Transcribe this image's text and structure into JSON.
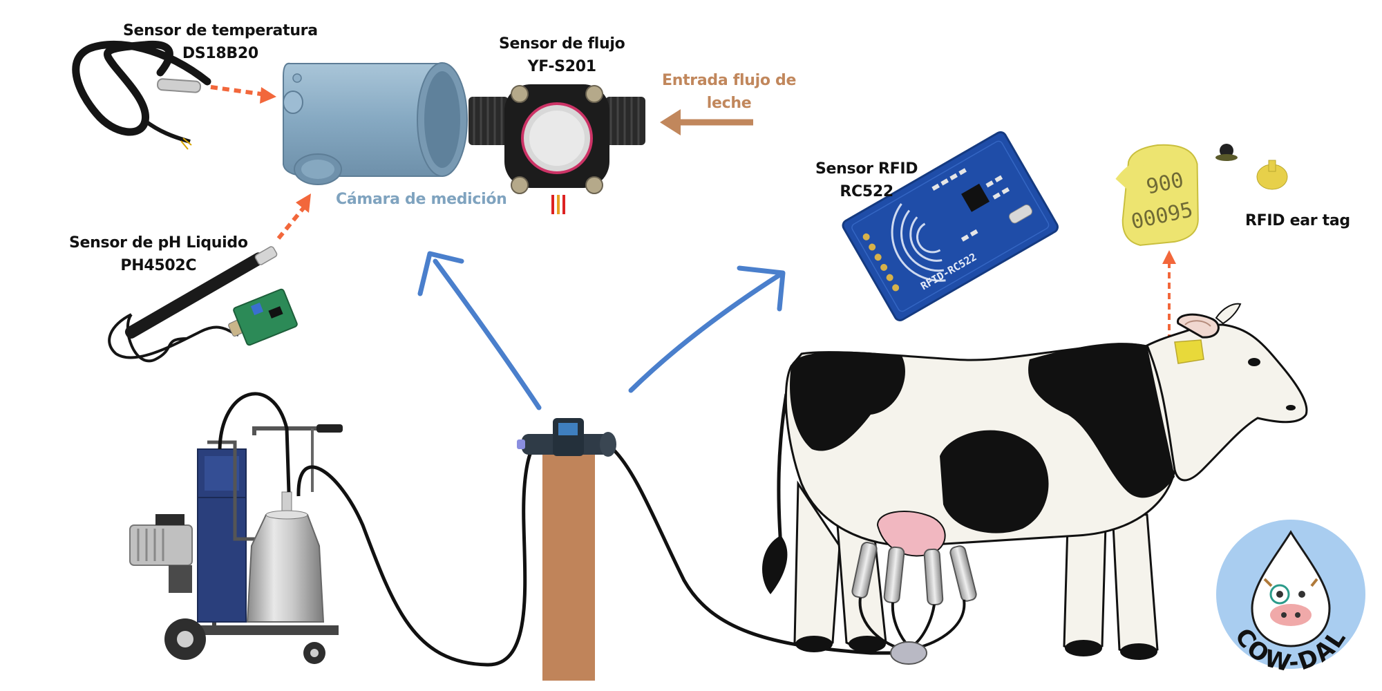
{
  "labels": {
    "temp_sensor": {
      "line1": "Sensor de temperatura",
      "line2": "DS18B20"
    },
    "flow_sensor": {
      "line1": "Sensor de flujo",
      "line2": "YF-S201"
    },
    "milk_inlet": {
      "line1": "Entrada flujo de",
      "line2": "leche"
    },
    "chamber": "Cámara de medición",
    "ph_sensor": {
      "line1": "Sensor de pH Liquido",
      "line2": "PH4502C"
    },
    "rfid_sensor": {
      "line1": "Sensor RFID",
      "line2": "RC522"
    },
    "ear_tag": "RFID ear tag"
  },
  "rfid_board_text": "RFID-RC522",
  "ear_tag_numbers": {
    "line1": "900",
    "line2": "00095"
  },
  "logo": {
    "text": "COW-DAL"
  },
  "colors": {
    "arrow_blue": "#4a7fcc",
    "arrow_orange": "#f2673b",
    "inlet_arrow": "#c1875c",
    "chamber_label": "#7fa3bf",
    "post": "#c0845a",
    "rfid_board": "#1f4da8",
    "ear_tag": "#ede470",
    "logo_bg": "#a9cdf0"
  }
}
